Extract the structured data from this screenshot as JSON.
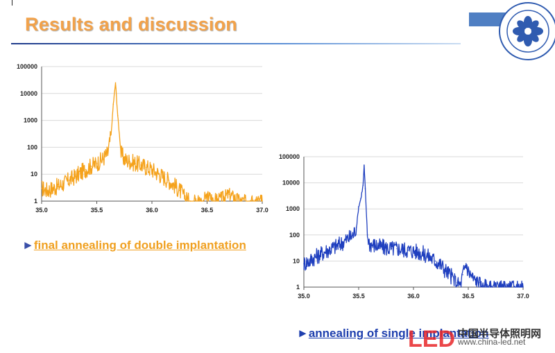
{
  "slide": {
    "title": "Results and discussion",
    "caption1": "final annealing of double implantation",
    "caption2": "annealing of single implantation",
    "arrow": "►",
    "watermark_cn": "中国半导体照明网",
    "watermark_url": "www.china-led.net",
    "watermark_logo": "LED"
  },
  "colors": {
    "series1": "#f5a21b",
    "series2": "#1f3fbf",
    "title": "#f2a24a"
  },
  "chart_data": [
    {
      "type": "line",
      "xlim": [
        35.0,
        37.0
      ],
      "ylim": [
        1,
        100000
      ],
      "yscale": "log",
      "grid": true,
      "x_ticks": [
        "35.0",
        "35.5",
        "36.0",
        "36.5",
        "37.0"
      ],
      "y_ticks": [
        "1",
        "10",
        "100",
        "1000",
        "10000",
        "100000"
      ],
      "series": [
        {
          "color": "#f5a21b",
          "x": [
            35.0,
            35.05,
            35.1,
            35.15,
            35.2,
            35.25,
            35.3,
            35.35,
            35.4,
            35.45,
            35.5,
            35.55,
            35.6,
            35.63,
            35.65,
            35.67,
            35.69,
            35.72,
            35.75,
            35.8,
            35.85,
            35.9,
            35.95,
            36.0,
            36.05,
            36.1,
            36.15,
            36.2,
            36.25,
            36.3,
            36.35,
            36.4,
            36.45,
            36.5,
            36.6,
            36.7,
            36.8,
            37.0
          ],
          "y": [
            3,
            2.5,
            3,
            3.5,
            4.5,
            6,
            8,
            11,
            15,
            20,
            25,
            35,
            60,
            300,
            4000,
            25000,
            1500,
            60,
            35,
            30,
            25,
            22,
            18,
            15,
            11,
            8,
            6,
            4,
            2.5,
            1.5,
            1,
            1.2,
            1,
            1.5,
            1.1,
            1.8,
            1,
            1
          ]
        }
      ]
    },
    {
      "type": "line",
      "xlim": [
        35.0,
        37.0
      ],
      "ylim": [
        1,
        100000
      ],
      "yscale": "log",
      "grid": true,
      "x_ticks": [
        "35.0",
        "35.5",
        "36.0",
        "36.5",
        "37.0"
      ],
      "y_ticks": [
        "1",
        "10",
        "100",
        "1000",
        "10000",
        "100000"
      ],
      "series": [
        {
          "color": "#1f3fbf",
          "x": [
            35.0,
            35.05,
            35.1,
            35.15,
            35.2,
            35.25,
            35.3,
            35.35,
            35.4,
            35.45,
            35.48,
            35.5,
            35.52,
            35.54,
            35.55,
            35.56,
            35.58,
            35.6,
            35.65,
            35.7,
            35.75,
            35.8,
            35.85,
            35.9,
            35.95,
            36.0,
            36.05,
            36.1,
            36.15,
            36.2,
            36.25,
            36.3,
            36.35,
            36.4,
            36.43,
            36.45,
            36.48,
            36.5,
            36.55,
            36.6,
            36.65,
            36.7,
            37.0
          ],
          "y": [
            8,
            10,
            14,
            18,
            24,
            30,
            38,
            50,
            70,
            100,
            200,
            1200,
            2500,
            8000,
            45000,
            6000,
            100,
            45,
            40,
            35,
            32,
            30,
            30,
            28,
            26,
            24,
            22,
            18,
            14,
            10,
            7,
            4,
            2.5,
            1.5,
            1.2,
            3,
            8,
            4,
            2,
            1.5,
            1.2,
            1,
            1
          ]
        }
      ]
    }
  ]
}
